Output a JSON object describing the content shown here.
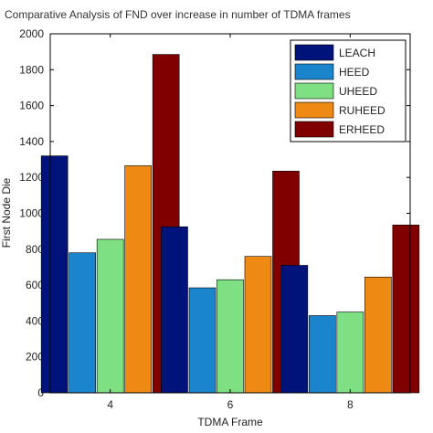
{
  "chart_data": {
    "type": "bar",
    "title": "Comparative Analysis of FND over increase in number of TDMA frames",
    "xlabel": "TDMA Frame",
    "ylabel": "First Node Die",
    "categories": [
      "4",
      "6",
      "8"
    ],
    "ylim": [
      0,
      2000
    ],
    "yticks": [
      0,
      200,
      400,
      600,
      800,
      1000,
      1200,
      1400,
      1600,
      1800,
      2000
    ],
    "legend_position": "top-right",
    "grid": false,
    "series": [
      {
        "name": "LEACH",
        "color": "#00137a",
        "values": [
          1320,
          925,
          710
        ]
      },
      {
        "name": "HEED",
        "color": "#1a84cc",
        "values": [
          780,
          585,
          430
        ]
      },
      {
        "name": "UHEED",
        "color": "#7fe083",
        "values": [
          855,
          630,
          450
        ]
      },
      {
        "name": "RUHEED",
        "color": "#ee8a14",
        "values": [
          1265,
          760,
          645
        ]
      },
      {
        "name": "ERHEED",
        "color": "#800000",
        "values": [
          1885,
          1235,
          935
        ]
      }
    ]
  }
}
